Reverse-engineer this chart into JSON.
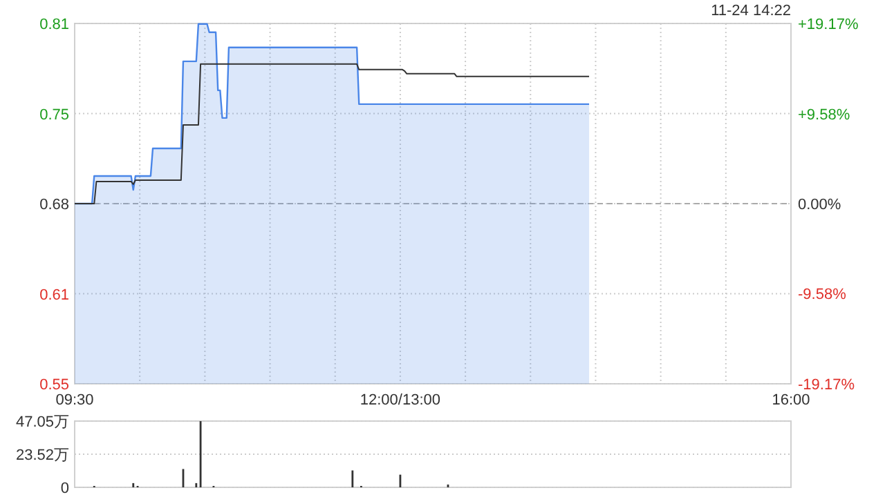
{
  "chart_data": [
    {
      "type": "area",
      "ylim": [
        0.5496,
        0.8104
      ],
      "y2lim": [
        -19.17,
        19.17
      ],
      "categories": [
        "09:30",
        null,
        null,
        null,
        null,
        null,
        null,
        null,
        null,
        null,
        null,
        null,
        null,
        null,
        null,
        null,
        null,
        null,
        null,
        null,
        null,
        null,
        null,
        null,
        null,
        null,
        null,
        null,
        null,
        null,
        null,
        null,
        null,
        null,
        null,
        null,
        null,
        null,
        null,
        null,
        null,
        null,
        null,
        null,
        null,
        null,
        null,
        null,
        null,
        null,
        null,
        null,
        null,
        null,
        null,
        null,
        null,
        null,
        null,
        null,
        null,
        null,
        null,
        null,
        null,
        null,
        null,
        null,
        null,
        null,
        null,
        null,
        null,
        null,
        null,
        null,
        null,
        null,
        null,
        null,
        null,
        null,
        null,
        null,
        null,
        null,
        null,
        null,
        null,
        null,
        null,
        null,
        null,
        null,
        null,
        null,
        null,
        null,
        null,
        null,
        null,
        null,
        null,
        null,
        null,
        null,
        null,
        null,
        null,
        null,
        null,
        null,
        null,
        null,
        null,
        null,
        null,
        null,
        null,
        null,
        null,
        null,
        null,
        null,
        null,
        null,
        null,
        null,
        null,
        null,
        null,
        null,
        null,
        null,
        null,
        null,
        null,
        null,
        null,
        null,
        null,
        null,
        null,
        null,
        null,
        null,
        null,
        null,
        null,
        null,
        "12:00/13:00",
        null,
        null,
        null,
        null,
        null,
        null,
        null,
        null,
        null,
        null,
        null,
        null,
        null,
        null,
        null,
        null,
        null,
        null,
        null,
        null,
        null,
        null,
        null,
        null,
        null,
        null,
        null,
        null,
        null,
        null,
        null,
        null,
        null,
        null,
        null,
        null,
        null,
        null,
        null,
        null,
        null,
        null,
        null,
        null,
        null,
        null,
        null,
        null,
        null,
        null,
        null,
        null,
        null,
        null,
        null,
        null,
        null,
        null,
        null,
        null,
        null,
        null,
        null,
        null,
        null,
        null,
        null,
        null,
        null,
        null,
        null,
        null,
        null,
        null,
        null,
        null,
        null,
        null,
        null,
        null,
        null,
        null,
        null,
        null,
        null,
        null,
        null,
        null,
        null,
        null,
        null,
        null,
        null,
        null,
        null,
        null,
        null,
        null,
        null,
        null,
        null,
        null,
        null,
        null,
        null,
        null,
        null,
        null,
        null,
        null,
        null,
        null,
        null,
        null,
        null,
        null,
        null,
        null,
        null,
        null,
        null,
        null,
        null,
        null,
        null,
        null,
        null,
        null,
        null,
        null,
        null,
        null,
        null,
        null,
        null,
        null,
        null,
        null,
        null,
        null,
        null,
        null,
        null,
        null,
        null,
        null,
        null,
        null,
        null,
        null,
        null,
        null,
        null,
        null,
        null,
        null,
        null,
        null,
        null,
        null,
        null,
        null,
        null,
        null,
        null,
        null,
        null,
        null,
        null,
        null,
        null,
        null,
        null,
        null,
        null,
        null,
        null,
        null,
        null,
        "16:00"
      ],
      "yticks": [
        {
          "value": 0.5496,
          "label": "0.55"
        },
        {
          "value": 0.6148,
          "label": "0.61"
        },
        {
          "value": 0.68,
          "label": "0.68"
        },
        {
          "value": 0.7452,
          "label": "0.75"
        },
        {
          "value": 0.8104,
          "label": "0.81"
        }
      ],
      "y2ticks": [
        {
          "value": -19.17,
          "label": "-19.17%"
        },
        {
          "value": -9.58,
          "label": "-9.58%"
        },
        {
          "value": 0,
          "label": "0.00%"
        },
        {
          "value": 9.58,
          "label": "+9.58%"
        },
        {
          "value": 19.17,
          "label": "+19.17%"
        }
      ],
      "grid": true,
      "ref_lines": [
        {
          "axis": "y",
          "value": 0.68,
          "color": "#aaaaaa",
          "line_style": "dashed"
        }
      ],
      "annotations": [
        "11-24 14:22"
      ],
      "series": [
        {
          "color": "#4a86e8",
          "values": [
            0.68,
            0.68,
            0.68,
            0.68,
            0.68,
            0.68,
            0.68,
            0.68,
            0.68,
            0.7,
            0.7,
            0.7,
            0.7,
            0.7,
            0.7,
            0.7,
            0.7,
            0.7,
            0.7,
            0.7,
            0.7,
            0.7,
            0.7,
            0.7,
            0.7,
            0.7,
            0.7,
            0.69,
            0.7,
            0.7,
            0.7,
            0.7,
            0.7,
            0.7,
            0.7,
            0.7,
            0.72,
            0.72,
            0.72,
            0.72,
            0.72,
            0.72,
            0.72,
            0.72,
            0.72,
            0.72,
            0.72,
            0.72,
            0.72,
            0.72,
            0.783,
            0.783,
            0.783,
            0.783,
            0.783,
            0.783,
            0.783,
            0.81,
            0.81,
            0.81,
            0.81,
            0.81,
            0.804,
            0.804,
            0.804,
            0.804,
            0.762,
            0.762,
            0.742,
            0.742,
            0.742,
            0.793,
            0.793,
            0.793,
            0.793,
            0.793,
            0.793,
            0.793,
            0.793,
            0.793,
            0.793,
            0.793,
            0.793,
            0.793,
            0.793,
            0.793,
            0.793,
            0.793,
            0.793,
            0.793,
            0.793,
            0.793,
            0.793,
            0.793,
            0.793,
            0.793,
            0.793,
            0.793,
            0.793,
            0.793,
            0.793,
            0.793,
            0.793,
            0.793,
            0.793,
            0.793,
            0.793,
            0.793,
            0.793,
            0.793,
            0.793,
            0.793,
            0.793,
            0.793,
            0.793,
            0.793,
            0.793,
            0.793,
            0.793,
            0.793,
            0.793,
            0.793,
            0.793,
            0.793,
            0.793,
            0.793,
            0.793,
            0.793,
            0.793,
            0.793,
            0.793,
            0.752,
            0.752,
            0.752,
            0.752,
            0.752,
            0.752,
            0.752,
            0.752,
            0.752,
            0.752,
            0.752,
            0.752,
            0.752,
            0.752,
            0.752,
            0.752,
            0.752,
            0.752,
            0.752,
            0.752,
            0.752,
            0.752,
            0.752,
            0.752,
            0.752,
            0.752,
            0.752,
            0.752,
            0.752,
            0.752,
            0.752,
            0.752,
            0.752,
            0.752,
            0.752,
            0.752,
            0.752,
            0.752,
            0.752,
            0.752,
            0.752,
            0.752,
            0.752,
            0.752,
            0.752,
            0.752,
            0.752,
            0.752,
            0.752,
            0.752,
            0.752,
            0.752,
            0.752,
            0.752,
            0.752,
            0.752,
            0.752,
            0.752,
            0.752,
            0.752,
            0.752,
            0.752,
            0.752,
            0.752,
            0.752,
            0.752,
            0.752,
            0.752,
            0.752,
            0.752,
            0.752,
            0.752,
            0.752,
            0.752,
            0.752,
            0.752,
            0.752,
            0.752,
            0.752,
            0.752,
            0.752,
            0.752,
            0.752,
            0.752,
            0.752,
            0.752,
            0.752,
            0.752,
            0.752,
            0.752,
            0.752,
            0.752,
            0.752,
            0.752,
            0.752,
            0.752,
            0.752,
            0.752,
            0.752,
            0.752,
            0.752,
            0.752,
            0.752,
            0.752,
            0.752,
            0.752,
            0.752,
            null,
            null,
            null,
            null,
            null,
            null,
            null,
            null,
            null,
            null,
            null,
            null,
            null,
            null,
            null,
            null,
            null,
            null,
            null,
            null,
            null,
            null,
            null,
            null,
            null,
            null,
            null,
            null,
            null,
            null,
            null,
            null,
            null,
            null,
            null,
            null,
            null,
            null,
            null,
            null,
            null,
            null,
            null,
            null,
            null,
            null,
            null,
            null,
            null,
            null,
            null,
            null,
            null,
            null,
            null,
            null,
            null,
            null,
            null,
            null,
            null,
            null,
            null,
            null,
            null,
            null,
            null,
            null,
            null,
            null,
            null,
            null,
            null,
            null,
            null,
            null,
            null,
            null,
            null,
            null,
            null,
            null,
            null,
            null,
            null,
            null,
            null,
            null,
            null,
            null,
            null,
            null,
            null
          ]
        },
        {
          "type": "line",
          "color": "#333333",
          "values": [
            0.68,
            0.68,
            0.68,
            0.68,
            0.68,
            0.68,
            0.68,
            0.68,
            0.68,
            0.68,
            0.696,
            0.696,
            0.696,
            0.696,
            0.696,
            0.696,
            0.696,
            0.696,
            0.696,
            0.696,
            0.696,
            0.696,
            0.696,
            0.696,
            0.696,
            0.696,
            0.696,
            0.694,
            0.697,
            0.697,
            0.697,
            0.697,
            0.697,
            0.697,
            0.697,
            0.697,
            0.697,
            0.697,
            0.697,
            0.697,
            0.697,
            0.697,
            0.697,
            0.697,
            0.697,
            0.697,
            0.697,
            0.697,
            0.697,
            0.697,
            0.737,
            0.737,
            0.737,
            0.737,
            0.737,
            0.737,
            0.737,
            0.737,
            0.781,
            0.781,
            0.781,
            0.781,
            0.781,
            0.781,
            0.781,
            0.781,
            0.781,
            0.781,
            0.781,
            0.781,
            0.781,
            0.781,
            0.781,
            0.781,
            0.781,
            0.781,
            0.781,
            0.781,
            0.781,
            0.781,
            0.781,
            0.781,
            0.781,
            0.781,
            0.781,
            0.781,
            0.781,
            0.781,
            0.781,
            0.781,
            0.781,
            0.781,
            0.781,
            0.781,
            0.781,
            0.781,
            0.781,
            0.781,
            0.781,
            0.781,
            0.781,
            0.781,
            0.781,
            0.781,
            0.781,
            0.781,
            0.781,
            0.781,
            0.781,
            0.781,
            0.781,
            0.781,
            0.781,
            0.781,
            0.781,
            0.781,
            0.781,
            0.781,
            0.781,
            0.781,
            0.781,
            0.781,
            0.781,
            0.781,
            0.781,
            0.781,
            0.781,
            0.781,
            0.781,
            0.781,
            0.781,
            0.777,
            0.777,
            0.777,
            0.777,
            0.777,
            0.777,
            0.777,
            0.777,
            0.777,
            0.777,
            0.777,
            0.777,
            0.777,
            0.777,
            0.777,
            0.777,
            0.777,
            0.777,
            0.777,
            0.777,
            0.777,
            0.776,
            0.774,
            0.774,
            0.774,
            0.774,
            0.774,
            0.774,
            0.774,
            0.774,
            0.774,
            0.774,
            0.774,
            0.774,
            0.774,
            0.774,
            0.774,
            0.774,
            0.774,
            0.774,
            0.774,
            0.774,
            0.774,
            0.774,
            0.774,
            0.772,
            0.772,
            0.772,
            0.772,
            0.772,
            0.772,
            0.772,
            0.772,
            0.772,
            0.772,
            0.772,
            0.772,
            0.772,
            0.772,
            0.772,
            0.772,
            0.772,
            0.772,
            0.772,
            0.772,
            0.772,
            0.772,
            0.772,
            0.772,
            0.772,
            0.772,
            0.772,
            0.772,
            0.772,
            0.772,
            0.772,
            0.772,
            0.772,
            0.772,
            0.772,
            0.772,
            0.772,
            0.772,
            0.772,
            0.772,
            0.772,
            0.772,
            0.772,
            0.772,
            0.772,
            0.772,
            0.772,
            0.772,
            0.772,
            0.772,
            0.772,
            0.772,
            0.772,
            0.772,
            0.772,
            0.772,
            0.772,
            0.772,
            0.772,
            0.772,
            0.772,
            0.772,
            null,
            null,
            null,
            null,
            null,
            null,
            null,
            null,
            null,
            null,
            null,
            null,
            null,
            null,
            null,
            null,
            null,
            null,
            null,
            null,
            null,
            null,
            null,
            null,
            null,
            null,
            null,
            null,
            null,
            null,
            null,
            null,
            null,
            null,
            null,
            null,
            null,
            null,
            null,
            null,
            null,
            null,
            null,
            null,
            null,
            null,
            null,
            null,
            null,
            null,
            null,
            null,
            null,
            null,
            null,
            null,
            null,
            null,
            null,
            null,
            null,
            null,
            null,
            null,
            null,
            null,
            null,
            null,
            null,
            null,
            null,
            null,
            null,
            null,
            null,
            null,
            null,
            null,
            null,
            null,
            null,
            null,
            null,
            null,
            null,
            null,
            null,
            null,
            null,
            null,
            null,
            null,
            null
          ]
        }
      ]
    },
    {
      "type": "bar",
      "ylim": [
        0,
        47.05
      ],
      "categories": [
        null,
        null,
        null,
        null,
        null,
        null,
        null,
        null,
        null,
        null,
        null,
        null,
        null,
        null,
        null,
        null,
        null,
        null,
        null,
        null,
        null,
        null,
        null,
        null,
        null,
        null,
        null,
        null,
        null,
        null,
        null,
        null,
        null,
        null,
        null,
        null,
        null,
        null,
        null,
        null,
        null,
        null,
        null,
        null,
        null,
        null,
        null,
        null,
        null,
        null,
        null,
        null,
        null,
        null,
        null,
        null,
        null,
        null,
        null,
        null,
        null,
        null,
        null,
        null,
        null,
        null,
        null,
        null,
        null,
        null,
        null,
        null,
        null,
        null,
        null,
        null,
        null,
        null,
        null,
        null,
        null,
        null,
        null,
        null,
        null,
        null,
        null,
        null,
        null,
        null,
        null,
        null,
        null,
        null,
        null,
        null,
        null,
        null,
        null,
        null,
        null,
        null,
        null,
        null,
        null,
        null,
        null,
        null,
        null,
        null,
        null,
        null,
        null,
        null,
        null,
        null,
        null,
        null,
        null,
        null,
        null,
        null,
        null,
        null,
        null,
        null,
        null,
        null,
        null,
        null,
        null,
        null,
        null,
        null,
        null,
        null,
        null,
        null,
        null,
        null,
        null,
        null,
        null,
        null,
        null,
        null,
        null,
        null,
        null,
        null,
        null,
        null,
        null,
        null,
        null,
        null,
        null,
        null,
        null,
        null,
        null,
        null,
        null,
        null,
        null,
        null,
        null,
        null,
        null,
        null,
        null,
        null,
        null,
        null,
        null,
        null,
        null,
        null,
        null,
        null,
        null,
        null,
        null,
        null,
        null,
        null,
        null,
        null,
        null,
        null,
        null,
        null,
        null,
        null,
        null,
        null,
        null,
        null,
        null,
        null,
        null,
        null,
        null,
        null,
        null,
        null,
        null,
        null,
        null,
        null,
        null,
        null,
        null,
        null,
        null,
        null,
        null,
        null,
        null,
        null,
        null,
        null,
        null,
        null,
        null,
        null,
        null,
        null,
        null,
        null,
        null,
        null,
        null,
        null,
        null,
        null,
        null,
        null,
        null,
        null,
        null,
        null,
        null,
        null,
        null,
        null,
        null,
        null,
        null,
        null,
        null,
        null,
        null,
        null,
        null,
        null,
        null,
        null,
        null,
        null,
        null,
        null,
        null,
        null,
        null,
        null,
        null,
        null,
        null,
        null,
        null,
        null,
        null,
        null,
        null,
        null,
        null,
        null,
        null,
        null,
        null,
        null,
        null,
        null,
        null,
        null,
        null,
        null,
        null,
        null,
        null,
        null,
        null,
        null,
        null,
        null,
        null,
        null,
        null,
        null,
        null,
        null,
        null,
        null,
        null,
        null,
        null,
        null,
        null,
        null,
        null,
        null,
        null,
        null,
        null,
        null,
        null,
        null,
        null,
        null,
        null,
        null,
        null,
        null,
        null,
        null,
        null,
        null,
        null,
        null,
        null
      ],
      "yticks": [
        0,
        {
          "value": 23.52,
          "label": "23.52万"
        },
        {
          "value": 47.05,
          "label": "47.05万"
        }
      ],
      "grid": "y",
      "tick_labels": "y",
      "color": "#333333",
      "values": [
        null,
        null,
        null,
        null,
        null,
        null,
        null,
        null,
        null,
        1,
        null,
        null,
        null,
        null,
        null,
        null,
        null,
        null,
        null,
        null,
        null,
        null,
        null,
        null,
        null,
        null,
        null,
        3,
        null,
        1,
        null,
        null,
        null,
        null,
        null,
        null,
        null,
        null,
        null,
        null,
        null,
        null,
        null,
        null,
        null,
        null,
        null,
        null,
        null,
        null,
        13,
        null,
        null,
        null,
        null,
        null,
        3,
        null,
        47,
        null,
        null,
        null,
        null,
        null,
        1,
        null,
        null,
        null,
        null,
        null,
        null,
        null,
        null,
        null,
        null,
        null,
        null,
        null,
        null,
        null,
        null,
        null,
        null,
        null,
        null,
        null,
        null,
        null,
        null,
        null,
        null,
        null,
        null,
        null,
        null,
        null,
        null,
        null,
        null,
        null,
        null,
        null,
        null,
        null,
        null,
        null,
        null,
        null,
        null,
        null,
        null,
        null,
        null,
        null,
        null,
        null,
        null,
        null,
        null,
        null,
        null,
        null,
        null,
        null,
        null,
        null,
        null,
        null,
        12,
        null,
        null,
        null,
        1,
        null,
        null,
        null,
        null,
        null,
        null,
        null,
        null,
        null,
        null,
        null,
        null,
        null,
        null,
        null,
        null,
        null,
        9,
        null,
        null,
        null,
        null,
        null,
        null,
        null,
        null,
        null,
        null,
        null,
        null,
        null,
        null,
        null,
        null,
        null,
        null,
        null,
        null,
        null,
        2,
        null,
        null,
        null,
        null,
        null,
        null,
        null,
        null,
        null,
        null,
        null,
        null,
        null,
        null,
        null,
        null,
        null,
        null,
        null,
        null,
        null,
        null,
        null,
        null,
        null,
        null,
        null,
        null,
        null,
        null,
        null,
        null,
        null,
        null,
        null,
        null,
        null,
        null,
        null,
        null,
        null,
        null,
        null,
        null,
        null,
        null,
        null,
        null,
        null,
        null,
        null,
        null,
        null,
        null,
        null,
        null,
        null,
        null,
        null,
        null,
        null,
        null,
        null,
        null,
        null,
        null,
        null,
        null,
        null,
        null,
        null,
        null,
        null,
        null,
        null,
        null,
        null,
        null,
        null,
        null,
        null,
        null,
        null,
        null,
        null,
        null,
        null,
        null,
        null,
        null,
        null,
        null,
        null,
        null,
        null,
        null,
        null,
        null,
        null,
        null,
        null,
        null,
        null,
        null,
        null,
        null,
        null,
        null,
        null,
        null,
        null,
        null,
        null,
        null,
        null,
        null,
        null,
        null,
        null,
        null,
        null,
        null,
        null,
        null,
        null,
        null,
        null,
        null,
        null,
        null,
        null,
        null,
        null,
        null,
        null,
        null,
        null,
        null,
        null,
        null,
        null,
        null,
        null,
        null,
        null,
        null,
        null,
        null,
        null,
        null,
        null,
        null,
        null,
        null,
        null,
        null,
        null,
        null
      ]
    }
  ]
}
